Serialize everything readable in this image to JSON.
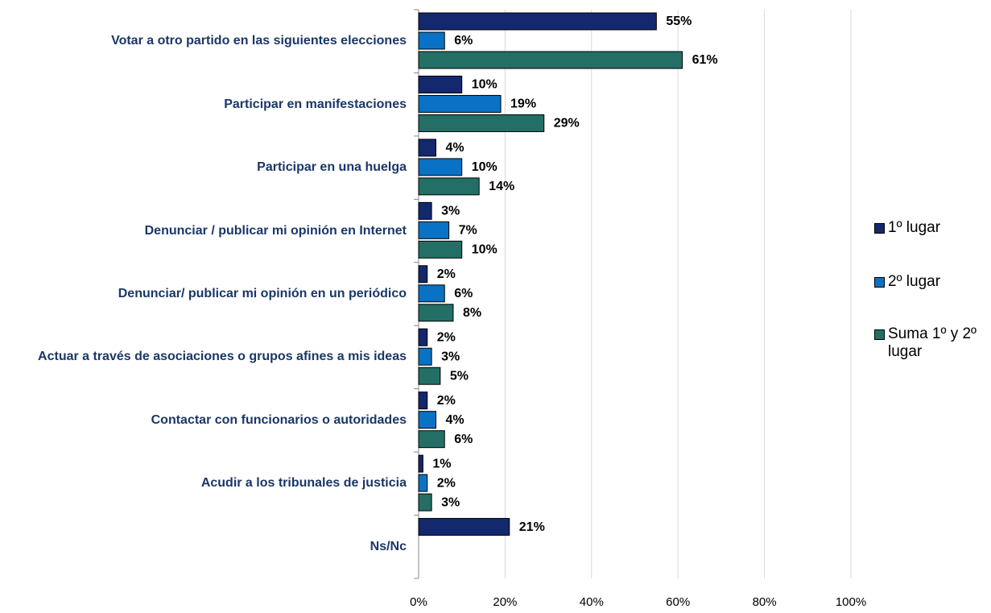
{
  "chart_data": {
    "type": "hbar",
    "categories": [
      "Votar a otro partido en las siguientes elecciones",
      "Participar en manifestaciones",
      "Participar en una huelga",
      "Denunciar / publicar mi opinión en Internet",
      "Denunciar/ publicar mi opinión en un periódico",
      "Actuar a través de asociaciones o grupos afines a mis ideas",
      "Contactar con funcionarios o autoridades",
      "Acudir a los tribunales de justicia",
      "Ns/Nc"
    ],
    "series": [
      {
        "name": "1º lugar",
        "color": "#14286e",
        "values": [
          55,
          10,
          4,
          3,
          2,
          2,
          2,
          1,
          21
        ],
        "value_labels": [
          "55%",
          "10%",
          "4%",
          "3%",
          "2%",
          "2%",
          "2%",
          "1%",
          "21%"
        ]
      },
      {
        "name": "2º lugar",
        "color": "#0a72c4",
        "values": [
          6,
          19,
          10,
          7,
          6,
          3,
          4,
          2,
          null
        ],
        "value_labels": [
          "6%",
          "19%",
          "10%",
          "7%",
          "6%",
          "3%",
          "4%",
          "2%",
          null
        ]
      },
      {
        "name": "Suma 1º y 2º lugar",
        "color": "#236f66",
        "values": [
          61,
          29,
          14,
          10,
          8,
          5,
          6,
          3,
          null
        ],
        "value_labels": [
          "61%",
          "29%",
          "14%",
          "10%",
          "8%",
          "5%",
          "6%",
          "3%",
          null
        ]
      }
    ],
    "xlim": [
      0,
      100
    ],
    "xticks": [
      {
        "value": 0,
        "label": "0%"
      },
      {
        "value": 20,
        "label": "20%"
      },
      {
        "value": 40,
        "label": "40%"
      },
      {
        "value": 60,
        "label": "60%"
      },
      {
        "value": 80,
        "label": "80%"
      },
      {
        "value": 100,
        "label": "100%"
      }
    ],
    "grid": true,
    "legend": "right"
  }
}
